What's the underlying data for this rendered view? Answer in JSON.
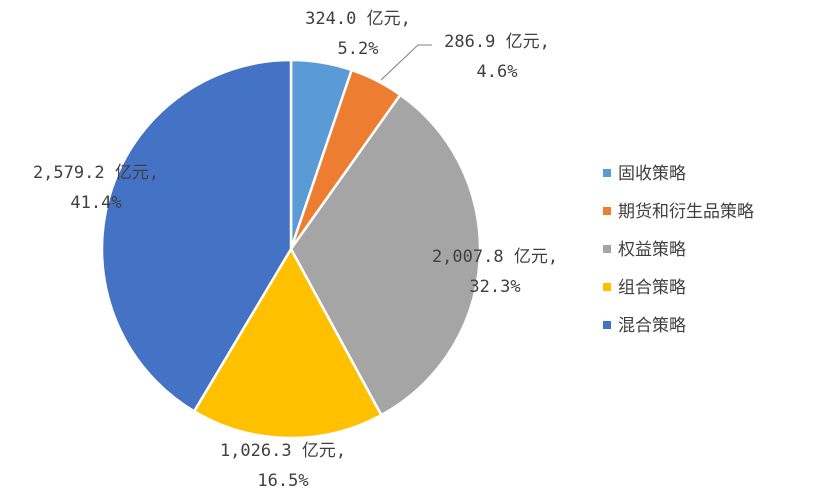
{
  "chart_data": {
    "type": "pie",
    "categories": [
      "固收策略",
      "期货和衍生品策略",
      "权益策略",
      "组合策略",
      "混合策略"
    ],
    "values": [
      324.0,
      286.9,
      2007.8,
      1026.3,
      2579.2
    ],
    "unit": "亿元",
    "percents": [
      "5.2%",
      "4.6%",
      "32.3%",
      "16.5%",
      "41.4%"
    ],
    "data_labels": [
      {
        "line1": "324.0 亿元,",
        "line2": "5.2%"
      },
      {
        "line1": "286.9 亿元,",
        "line2": "4.6%"
      },
      {
        "line1": "2,007.8 亿元,",
        "line2": "32.3%"
      },
      {
        "line1": "1,026.3 亿元,",
        "line2": "16.5%"
      },
      {
        "line1": "2,579.2 亿元,",
        "line2": "41.4%"
      }
    ],
    "colors": [
      "#5B9BD5",
      "#ED7D31",
      "#A5A5A5",
      "#FFC000",
      "#4472C4"
    ],
    "legend_position": "right"
  }
}
